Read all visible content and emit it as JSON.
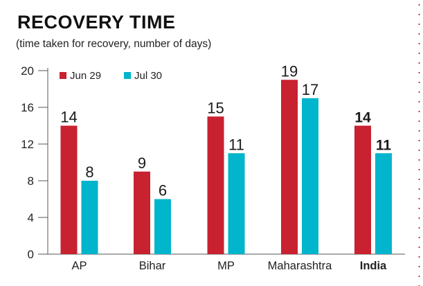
{
  "header": {
    "title": "RECOVERY TIME",
    "subtitle": "(time taken for recovery, number of days)"
  },
  "colors": {
    "jun29": "#c8212f",
    "jul30": "#00b5cc",
    "axis": "#555555",
    "text": "#1a1a1a"
  },
  "chart_data": {
    "type": "bar",
    "title": "RECOVERY TIME",
    "subtitle": "(time taken for recovery, number of days)",
    "xlabel": "",
    "ylabel": "",
    "categories": [
      "AP",
      "Bihar",
      "MP",
      "Maharashtra",
      "India"
    ],
    "highlight_category": "India",
    "series": [
      {
        "name": "Jun 29",
        "color": "#c8212f",
        "values": [
          14,
          9,
          15,
          19,
          14
        ]
      },
      {
        "name": "Jul 30",
        "color": "#00b5cc",
        "values": [
          8,
          6,
          11,
          17,
          11
        ]
      }
    ],
    "ylim": [
      0,
      20
    ],
    "yticks": [
      0,
      4,
      8,
      12,
      16,
      20
    ],
    "grid": false,
    "legend": "top-left"
  }
}
